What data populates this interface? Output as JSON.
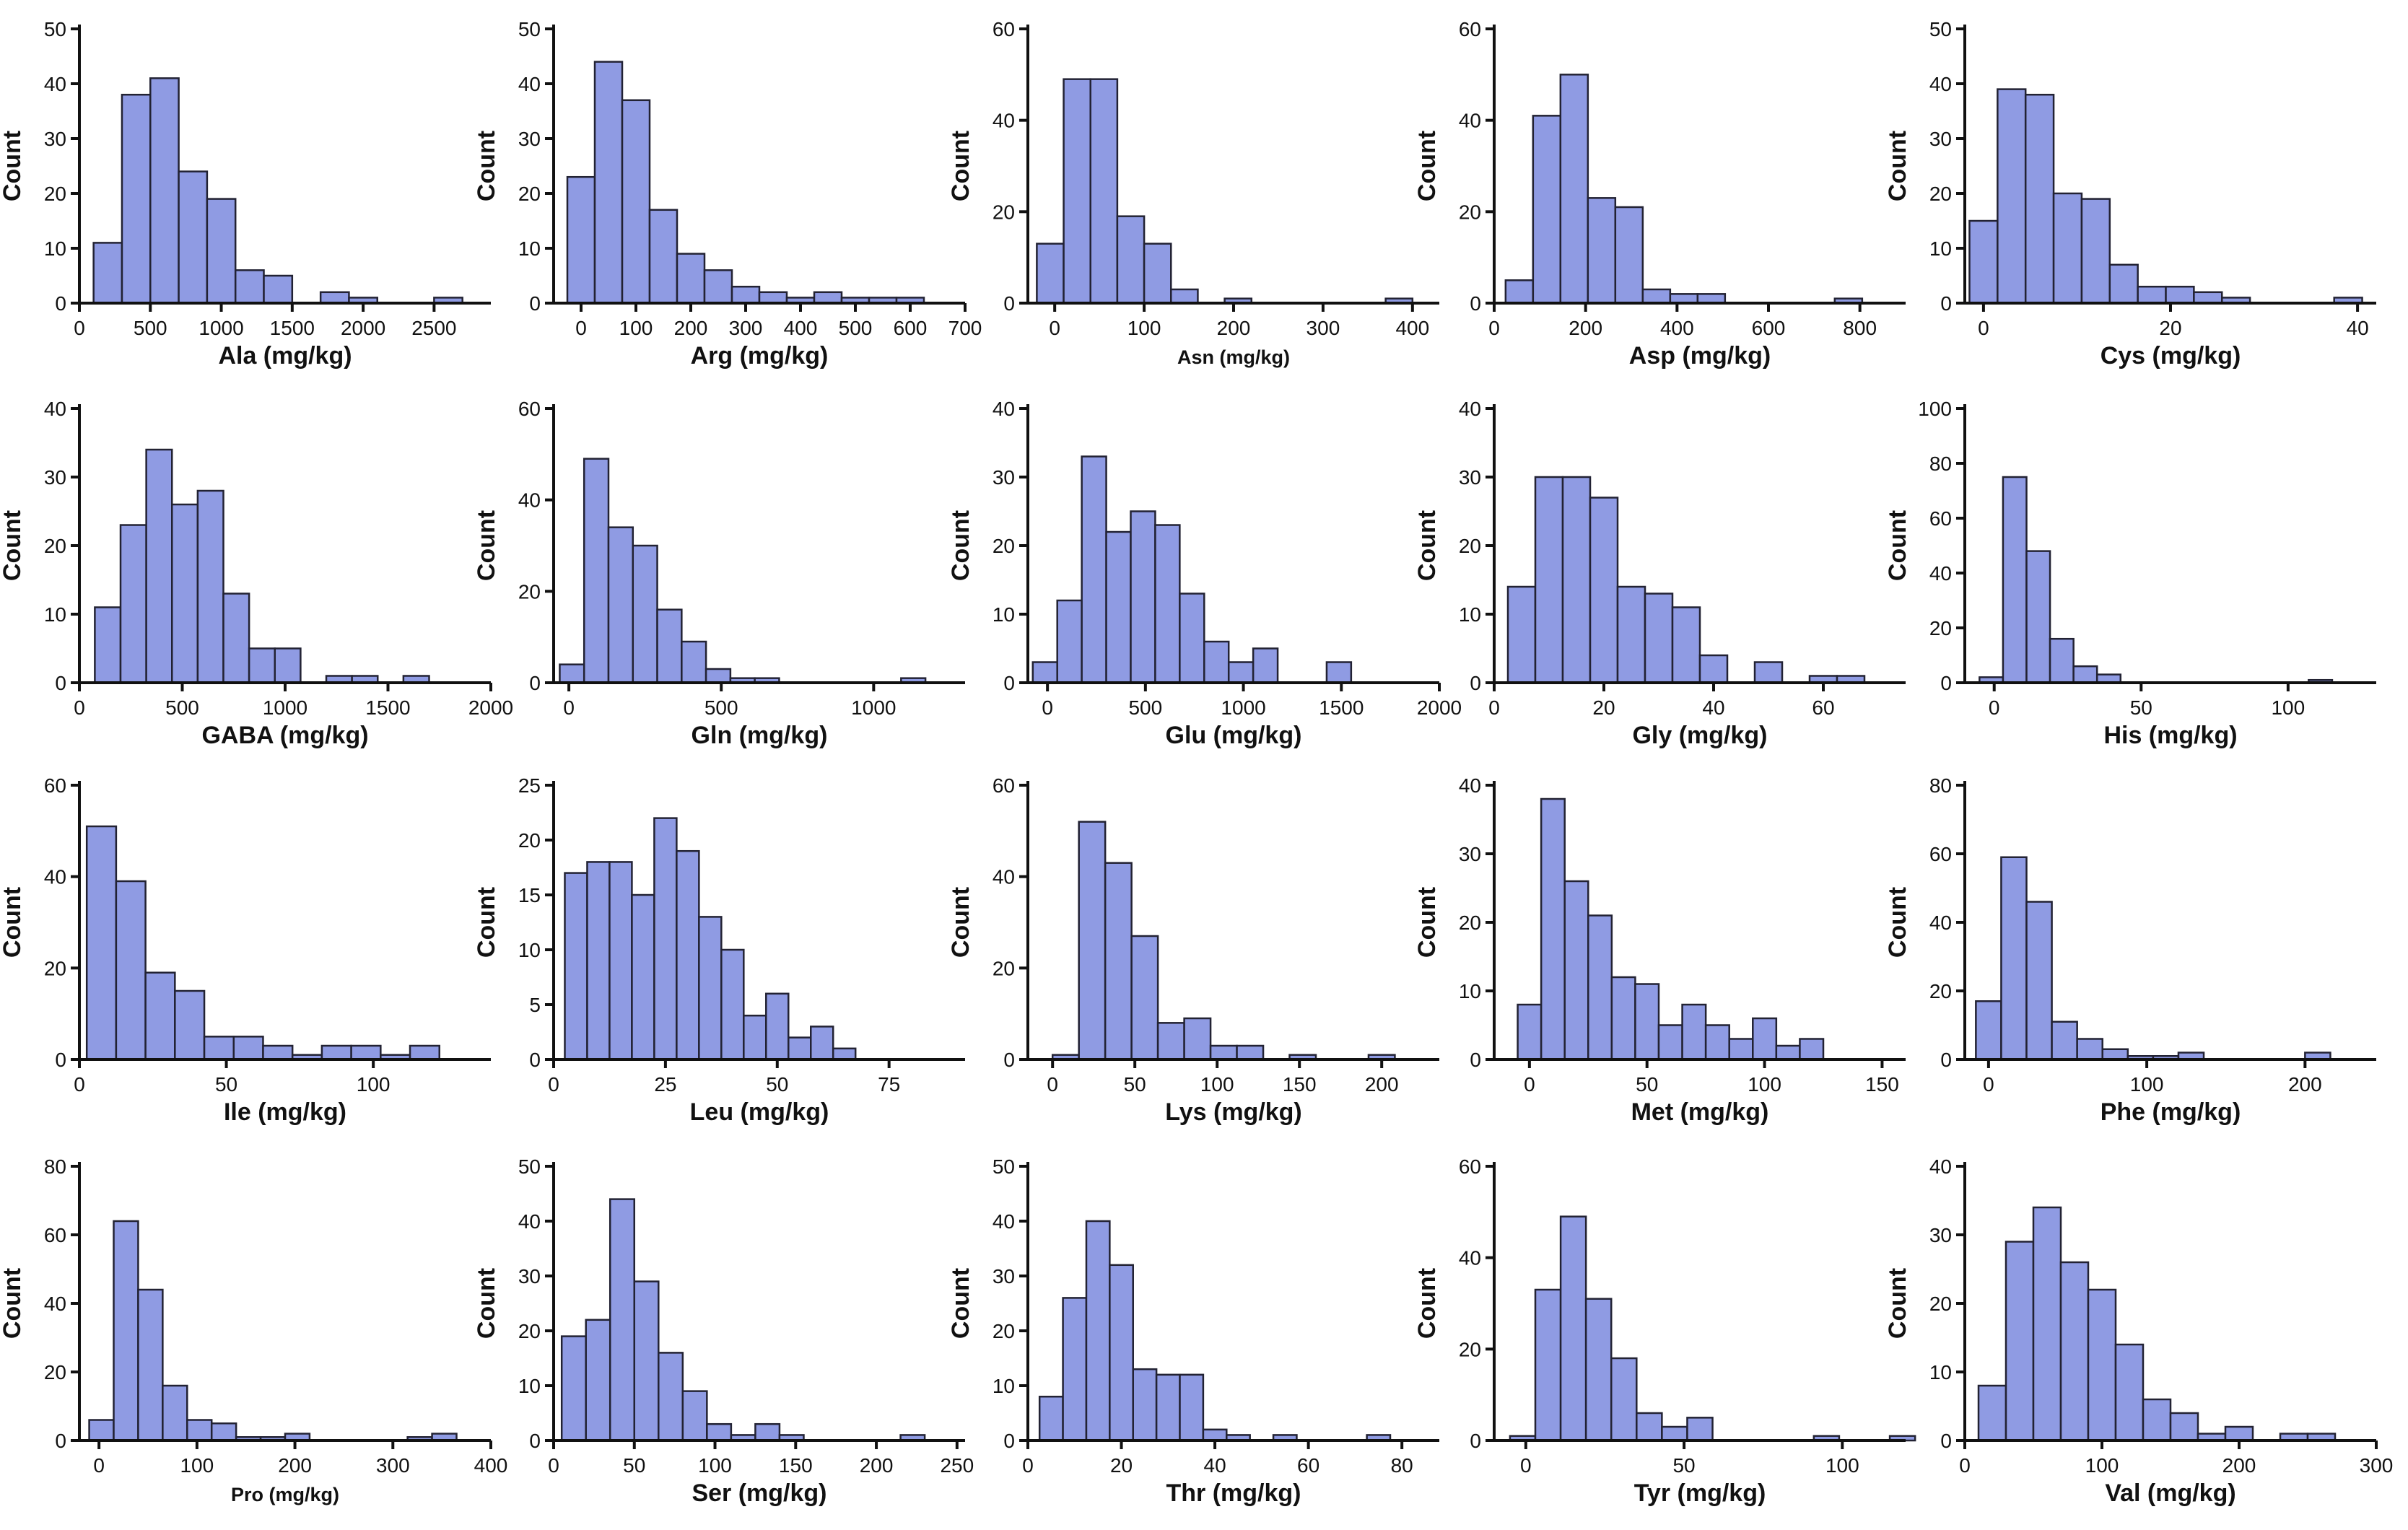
{
  "figure": {
    "bar_color": "#8f9be3",
    "bar_edge": "#222233",
    "axis_color": "#111111"
  },
  "chart_data": [
    {
      "type": "bar",
      "xlabel": "Ala (mg/kg)",
      "ylabel": "Count",
      "xlim": [
        0,
        2900
      ],
      "ylim": [
        0,
        50
      ],
      "xticks": [
        0,
        500,
        1000,
        1500,
        2000,
        2500
      ],
      "yticks": [
        0,
        10,
        20,
        30,
        40,
        50
      ],
      "bin_start": 100,
      "bin_width": 200,
      "values": [
        11,
        38,
        41,
        24,
        19,
        6,
        5,
        0,
        2,
        1,
        0,
        0,
        1
      ]
    },
    {
      "type": "bar",
      "xlabel": "Arg (mg/kg)",
      "ylabel": "Count",
      "xlim": [
        -50,
        700
      ],
      "ylim": [
        0,
        50
      ],
      "xticks": [
        0,
        100,
        200,
        300,
        400,
        500,
        600,
        700
      ],
      "yticks": [
        0,
        10,
        20,
        30,
        40,
        50
      ],
      "bin_start": -25,
      "bin_width": 50,
      "values": [
        23,
        44,
        37,
        17,
        9,
        6,
        3,
        2,
        1,
        2,
        1,
        1,
        1
      ]
    },
    {
      "type": "bar",
      "xlabel": "Asn (mg/kg)",
      "ylabel": "Count",
      "xlim": [
        -30,
        430
      ],
      "ylim": [
        0,
        60
      ],
      "xticks": [
        0,
        100,
        200,
        300,
        400
      ],
      "yticks": [
        0,
        20,
        40,
        60
      ],
      "bin_start": -20,
      "bin_width": 30,
      "values": [
        13,
        49,
        49,
        19,
        13,
        3,
        0,
        1,
        0,
        0,
        0,
        0,
        0,
        1
      ]
    },
    {
      "type": "bar",
      "xlabel": "Asp (mg/kg)",
      "ylabel": "Count",
      "xlim": [
        0,
        900
      ],
      "ylim": [
        0,
        60
      ],
      "xticks": [
        0,
        200,
        400,
        600,
        800
      ],
      "yticks": [
        0,
        20,
        40,
        60
      ],
      "bin_start": 25,
      "bin_width": 60,
      "values": [
        5,
        41,
        50,
        23,
        21,
        3,
        2,
        2,
        0,
        0,
        0,
        0,
        1
      ]
    },
    {
      "type": "bar",
      "xlabel": "Cys (mg/kg)",
      "ylabel": "Count",
      "xlim": [
        -2,
        42
      ],
      "ylim": [
        0,
        50
      ],
      "xticks": [
        0,
        20,
        40
      ],
      "yticks": [
        0,
        10,
        20,
        30,
        40,
        50
      ],
      "bin_start": -1.5,
      "bin_width": 3,
      "values": [
        15,
        39,
        38,
        20,
        19,
        7,
        3,
        3,
        2,
        1,
        0,
        0,
        0,
        1
      ]
    },
    {
      "type": "bar",
      "xlabel": "GABA (mg/kg)",
      "ylabel": "Count",
      "xlim": [
        0,
        2000
      ],
      "ylim": [
        0,
        40
      ],
      "xticks": [
        0,
        500,
        1000,
        1500,
        2000
      ],
      "yticks": [
        0,
        10,
        20,
        30,
        40
      ],
      "bin_start": 75,
      "bin_width": 125,
      "values": [
        11,
        23,
        34,
        26,
        28,
        13,
        5,
        5,
        0,
        1,
        1,
        0,
        1
      ]
    },
    {
      "type": "bar",
      "xlabel": "Gln (mg/kg)",
      "ylabel": "Count",
      "xlim": [
        -50,
        1300
      ],
      "ylim": [
        0,
        60
      ],
      "xticks": [
        0,
        500,
        1000
      ],
      "yticks": [
        0,
        20,
        40,
        60
      ],
      "bin_start": -30,
      "bin_width": 80,
      "values": [
        4,
        49,
        34,
        30,
        16,
        9,
        3,
        1,
        1,
        0,
        0,
        0,
        0,
        0,
        1
      ]
    },
    {
      "type": "bar",
      "xlabel": "Glu (mg/kg)",
      "ylabel": "Count",
      "xlim": [
        -100,
        2000
      ],
      "ylim": [
        0,
        40
      ],
      "xticks": [
        0,
        500,
        1000,
        1500,
        2000
      ],
      "yticks": [
        0,
        10,
        20,
        30,
        40
      ],
      "bin_start": -75,
      "bin_width": 125,
      "values": [
        3,
        12,
        33,
        22,
        25,
        23,
        13,
        6,
        3,
        5,
        0,
        0,
        3
      ]
    },
    {
      "type": "bar",
      "xlabel": "Gly (mg/kg)",
      "ylabel": "Count",
      "xlim": [
        0,
        75
      ],
      "ylim": [
        0,
        40
      ],
      "xticks": [
        0,
        20,
        40,
        60
      ],
      "yticks": [
        0,
        10,
        20,
        30,
        40
      ],
      "bin_start": 2.5,
      "bin_width": 5,
      "values": [
        14,
        30,
        30,
        27,
        14,
        13,
        11,
        4,
        0,
        3,
        0,
        1,
        1
      ]
    },
    {
      "type": "bar",
      "xlabel": "His (mg/kg)",
      "ylabel": "Count",
      "xlim": [
        -10,
        130
      ],
      "ylim": [
        0,
        100
      ],
      "xticks": [
        0,
        50,
        100
      ],
      "yticks": [
        0,
        20,
        40,
        60,
        80,
        100
      ],
      "bin_start": -5,
      "bin_width": 8,
      "values": [
        2,
        75,
        48,
        16,
        6,
        3,
        0,
        0,
        0,
        0,
        0,
        0,
        0,
        0,
        1
      ]
    },
    {
      "type": "bar",
      "xlabel": "Ile (mg/kg)",
      "ylabel": "Count",
      "xlim": [
        0,
        140
      ],
      "ylim": [
        0,
        60
      ],
      "xticks": [
        0,
        50,
        100
      ],
      "yticks": [
        0,
        20,
        40,
        60
      ],
      "bin_start": 2.5,
      "bin_width": 10,
      "values": [
        51,
        39,
        19,
        15,
        5,
        5,
        3,
        1,
        3,
        3,
        1,
        3
      ]
    },
    {
      "type": "bar",
      "xlabel": "Leu (mg/kg)",
      "ylabel": "Count",
      "xlim": [
        0,
        92
      ],
      "ylim": [
        0,
        25
      ],
      "xticks": [
        0,
        25,
        50,
        75
      ],
      "yticks": [
        0,
        5,
        10,
        15,
        20,
        25
      ],
      "bin_start": 2.5,
      "bin_width": 5,
      "values": [
        17,
        18,
        18,
        15,
        22,
        19,
        13,
        10,
        4,
        6,
        2,
        3,
        1
      ]
    },
    {
      "type": "bar",
      "xlabel": "Lys (mg/kg)",
      "ylabel": "Count",
      "xlim": [
        -15,
        235
      ],
      "ylim": [
        0,
        60
      ],
      "xticks": [
        0,
        50,
        100,
        150,
        200
      ],
      "yticks": [
        0,
        20,
        40,
        60
      ],
      "bin_start": 0,
      "bin_width": 16,
      "values": [
        1,
        52,
        43,
        27,
        8,
        9,
        3,
        3,
        0,
        1,
        0,
        0,
        1
      ]
    },
    {
      "type": "bar",
      "xlabel": "Met (mg/kg)",
      "ylabel": "Count",
      "xlim": [
        -15,
        160
      ],
      "ylim": [
        0,
        40
      ],
      "xticks": [
        0,
        50,
        100,
        150
      ],
      "yticks": [
        0,
        10,
        20,
        30,
        40
      ],
      "bin_start": -5,
      "bin_width": 10,
      "values": [
        8,
        38,
        26,
        21,
        12,
        11,
        5,
        8,
        5,
        3,
        6,
        2,
        3
      ]
    },
    {
      "type": "bar",
      "xlabel": "Phe (mg/kg)",
      "ylabel": "Count",
      "xlim": [
        -15,
        245
      ],
      "ylim": [
        0,
        80
      ],
      "xticks": [
        0,
        100,
        200
      ],
      "yticks": [
        0,
        20,
        40,
        60,
        80
      ],
      "bin_start": -8,
      "bin_width": 16,
      "values": [
        17,
        59,
        46,
        11,
        6,
        3,
        1,
        1,
        2,
        0,
        0,
        0,
        0,
        2
      ]
    },
    {
      "type": "bar",
      "xlabel": "Pro (mg/kg)",
      "ylabel": "Count",
      "xlim": [
        -20,
        400
      ],
      "ylim": [
        0,
        80
      ],
      "xticks": [
        0,
        100,
        200,
        300,
        400
      ],
      "yticks": [
        0,
        20,
        40,
        60,
        80
      ],
      "bin_start": -10,
      "bin_width": 25,
      "values": [
        6,
        64,
        44,
        16,
        6,
        5,
        1,
        1,
        2,
        0,
        0,
        0,
        0,
        1,
        2
      ]
    },
    {
      "type": "bar",
      "xlabel": "Ser (mg/kg)",
      "ylabel": "Count",
      "xlim": [
        0,
        255
      ],
      "ylim": [
        0,
        50
      ],
      "xticks": [
        0,
        50,
        100,
        150,
        200,
        250
      ],
      "yticks": [
        0,
        10,
        20,
        30,
        40,
        50
      ],
      "bin_start": 5,
      "bin_width": 15,
      "values": [
        19,
        22,
        44,
        29,
        16,
        9,
        3,
        1,
        3,
        1,
        0,
        0,
        0,
        0,
        1
      ]
    },
    {
      "type": "bar",
      "xlabel": "Thr (mg/kg)",
      "ylabel": "Count",
      "xlim": [
        0,
        88
      ],
      "ylim": [
        0,
        50
      ],
      "xticks": [
        0,
        20,
        40,
        60,
        80
      ],
      "yticks": [
        0,
        10,
        20,
        30,
        40,
        50
      ],
      "bin_start": 2.5,
      "bin_width": 5,
      "values": [
        8,
        26,
        40,
        32,
        13,
        12,
        12,
        2,
        1,
        0,
        1,
        0,
        0,
        0,
        1
      ]
    },
    {
      "type": "bar",
      "xlabel": "Tyr (mg/kg)",
      "ylabel": "Count",
      "xlim": [
        -10,
        120
      ],
      "ylim": [
        0,
        60
      ],
      "xticks": [
        0,
        50,
        100
      ],
      "yticks": [
        0,
        20,
        40,
        60
      ],
      "bin_start": -5,
      "bin_width": 8,
      "values": [
        1,
        33,
        49,
        31,
        18,
        6,
        3,
        5,
        0,
        0,
        0,
        0,
        1,
        0,
        0,
        1
      ]
    },
    {
      "type": "bar",
      "xlabel": "Val (mg/kg)",
      "ylabel": "Count",
      "xlim": [
        0,
        300
      ],
      "ylim": [
        0,
        40
      ],
      "xticks": [
        0,
        100,
        200,
        300
      ],
      "yticks": [
        0,
        10,
        20,
        30,
        40
      ],
      "bin_start": 10,
      "bin_width": 20,
      "values": [
        8,
        29,
        34,
        26,
        22,
        14,
        6,
        4,
        1,
        2,
        0,
        1,
        1
      ]
    }
  ]
}
